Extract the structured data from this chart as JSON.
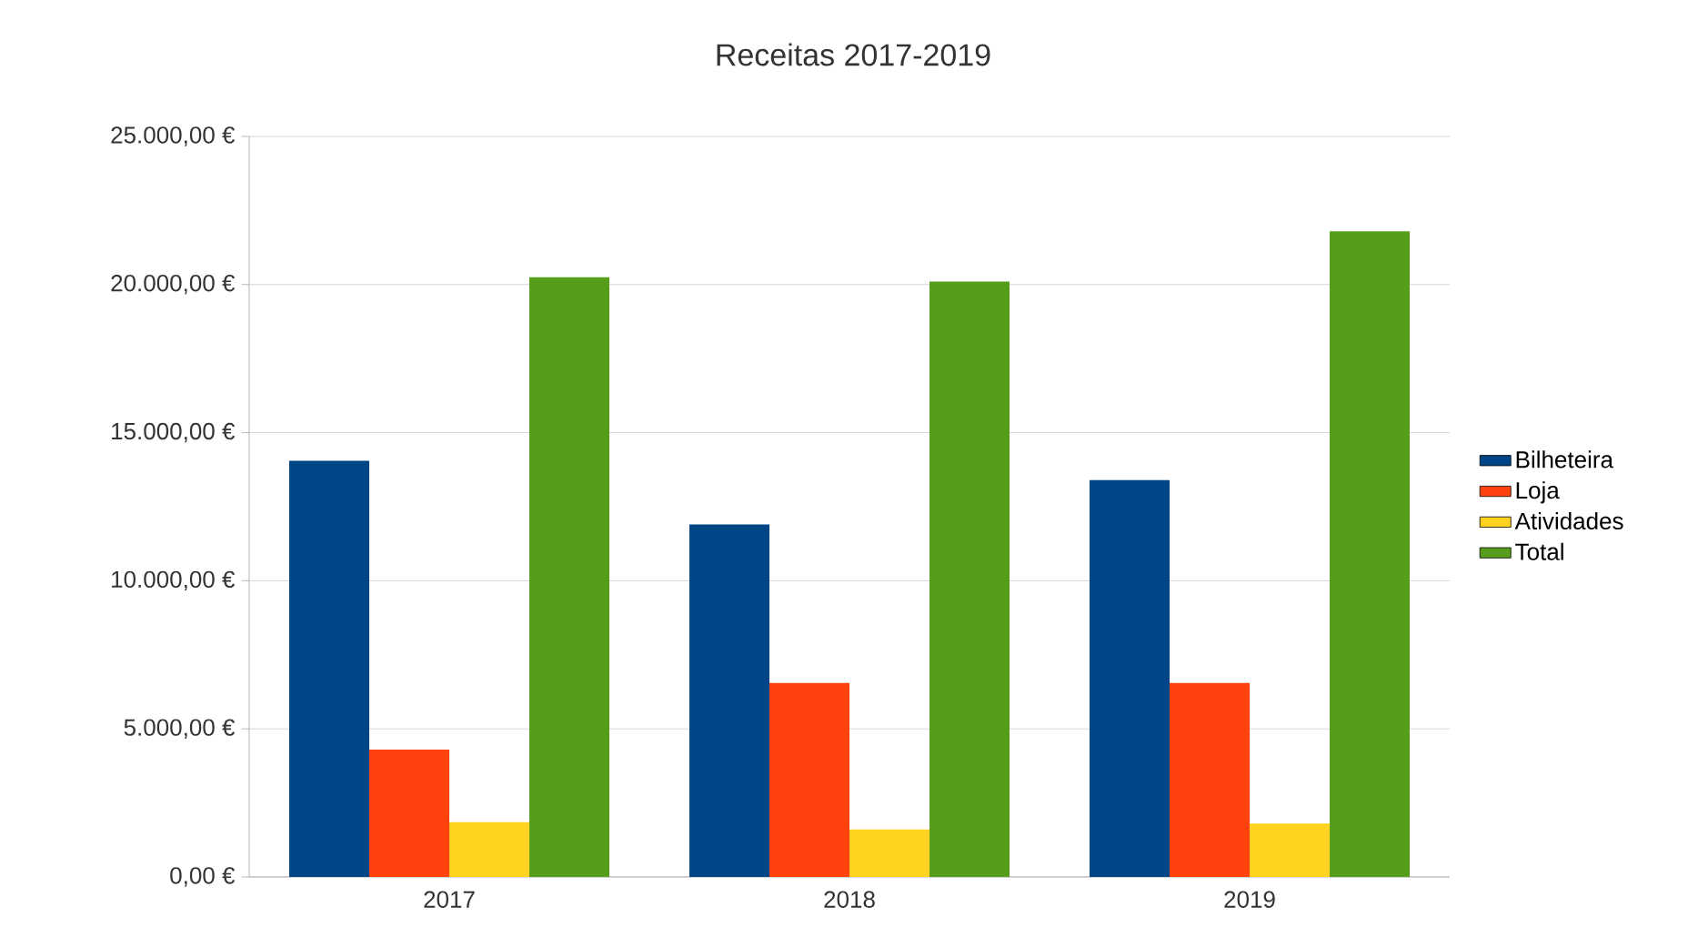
{
  "chart_data": {
    "type": "bar",
    "title": "Receitas 2017-2019",
    "categories": [
      "2017",
      "2018",
      "2019"
    ],
    "series": [
      {
        "name": "Bilheteira",
        "color": "#004586",
        "values": [
          14050,
          11900,
          13400
        ]
      },
      {
        "name": "Loja",
        "color": "#ff420e",
        "values": [
          4300,
          6550,
          6550
        ]
      },
      {
        "name": "Atividades",
        "color": "#ffd320",
        "values": [
          1850,
          1600,
          1800
        ]
      },
      {
        "name": "Total",
        "color": "#579d1c",
        "values": [
          20250,
          20100,
          21800
        ]
      }
    ],
    "ylim": [
      0,
      25000
    ],
    "yticks": [
      {
        "value": 0,
        "label": "0,00 €"
      },
      {
        "value": 5000,
        "label": "5.000,00 €"
      },
      {
        "value": 10000,
        "label": "10.000,00 €"
      },
      {
        "value": 15000,
        "label": "15.000,00 €"
      },
      {
        "value": 20000,
        "label": "20.000,00 €"
      },
      {
        "value": 25000,
        "label": "25.000,00 €"
      }
    ],
    "grid": "y",
    "legend": "right"
  }
}
